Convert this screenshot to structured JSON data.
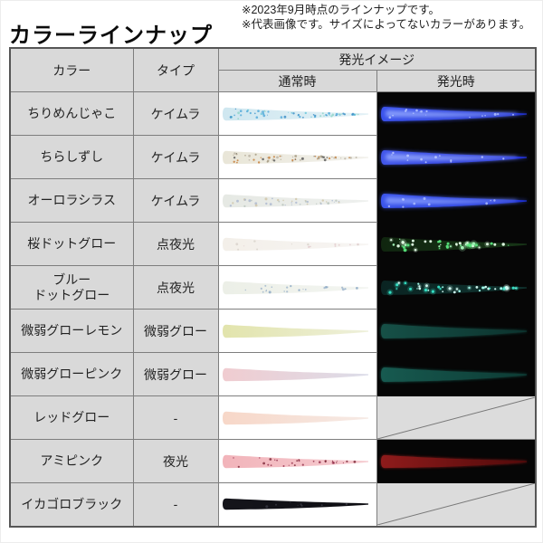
{
  "header": {
    "title": "カラーラインナップ",
    "note1": "※2023年9月時点のラインナップです。",
    "note2": "※代表画像です。サイズによってないカラーがあります。"
  },
  "palette": {
    "cell_gray": "#d9d9d9",
    "grid_line": "#7e7e7e",
    "outer_border": "#565656",
    "black_bg": "#060606",
    "diag_bg": "#dcdcdc",
    "diag_line": "#777777"
  },
  "table": {
    "col_color": "カラー",
    "col_type": "タイプ",
    "col_glow": "発光イメージ",
    "col_normal": "通常時",
    "col_glow_time": "発光時",
    "rows": [
      {
        "name": "ちりめんじゃこ",
        "type": "ケイムラ",
        "normal": {
          "body": [
            "#cfe7f0",
            "#e3f1f6"
          ],
          "specks": [
            "#4fa8d8",
            "#66c6da",
            "#348bc4",
            "#8fd4c8"
          ],
          "n": 60
        },
        "glow": {
          "kind": "lure",
          "body": [
            "#3a52ec",
            "#2030c8"
          ],
          "hi": "#96acff",
          "specks": [
            "#b9c9ff"
          ],
          "n": 16
        }
      },
      {
        "name": "ちらしずし",
        "type": "ケイムラ",
        "normal": {
          "body": [
            "#e9e6d8",
            "#f2f1ec"
          ],
          "specks": [
            "#a39780",
            "#c47a35",
            "#555555",
            "#b9b2a3"
          ],
          "n": 55
        },
        "glow": {
          "kind": "lure",
          "body": [
            "#4257ea",
            "#202fd0"
          ],
          "hi": "#9aadff",
          "specks": [
            "#c3cfff"
          ],
          "n": 12
        }
      },
      {
        "name": "オーロラシラス",
        "type": "ケイムラ",
        "normal": {
          "body": [
            "#e6e9e4",
            "#eef0ee"
          ],
          "specks": [
            "#b9c4bd",
            "#aab7cf",
            "#cfc4a6"
          ],
          "n": 42
        },
        "glow": {
          "kind": "lure",
          "body": [
            "#3b55ec",
            "#1d30d2"
          ],
          "hi": "#8ba2ff",
          "specks": [
            "#b0c0ff"
          ],
          "n": 10
        }
      },
      {
        "name": "桜ドットグロー",
        "type": "点夜光",
        "normal": {
          "body": [
            "#f3efe9",
            "#f7f5f3"
          ],
          "specks": [
            "#e3cdd0",
            "#d8d2ca"
          ],
          "n": 16
        },
        "glow": {
          "kind": "dots",
          "body": [
            "#10260f",
            "#173517"
          ],
          "specks": [
            "#58e57c",
            "#a9f7bc",
            "#e6ffe9"
          ],
          "n": 46
        }
      },
      {
        "name": "ブルー\nドットグロー",
        "type": "点夜光",
        "normal": {
          "body": [
            "#ecefe7",
            "#f3f5f1"
          ],
          "specks": [
            "#8aa6c4",
            "#9db4cc"
          ],
          "n": 24
        },
        "glow": {
          "kind": "dots",
          "body": [
            "#0a2422",
            "#103430"
          ],
          "specks": [
            "#35e5c8",
            "#a8fff0",
            "#d8fff8"
          ],
          "n": 40
        }
      },
      {
        "name": "微弱グローレモン",
        "type": "微弱グロー",
        "normal": {
          "body": [
            "#e2e4ac",
            "#eef0db"
          ],
          "specks": [],
          "n": 0
        },
        "glow": {
          "kind": "faint",
          "body": [
            "#165047",
            "#0c332e"
          ]
        }
      },
      {
        "name": "微弱グローピンク",
        "type": "微弱グロー",
        "normal": {
          "body": [
            "#f0ccd0",
            "#dcdde9"
          ],
          "specks": [],
          "n": 0
        },
        "glow": {
          "kind": "faint",
          "body": [
            "#175a50",
            "#0d3b34"
          ]
        }
      },
      {
        "name": "レッドグロー",
        "type": "-",
        "normal": {
          "body": [
            "#f7d7c8",
            "#f6eae5"
          ],
          "specks": [],
          "n": 0
        },
        "glow": {
          "kind": "none"
        }
      },
      {
        "name": "アミピンク",
        "type": "夜光",
        "normal": {
          "body": [
            "#f2b4ba",
            "#f5ccd1"
          ],
          "specks": [
            "#7c2636",
            "#93304b"
          ],
          "n": 30
        },
        "glow": {
          "kind": "faint",
          "body": [
            "#8e1b1b",
            "#520a0a"
          ],
          "thk": 6.5
        }
      },
      {
        "name": "イカゴロブラック",
        "type": "-",
        "normal": {
          "body": [
            "#15151b",
            "#0d0d12"
          ],
          "specks": [
            "#3a3a44"
          ],
          "n": 8,
          "thk": 5.6,
          "curve": 0.8
        },
        "glow": {
          "kind": "none"
        }
      }
    ]
  }
}
